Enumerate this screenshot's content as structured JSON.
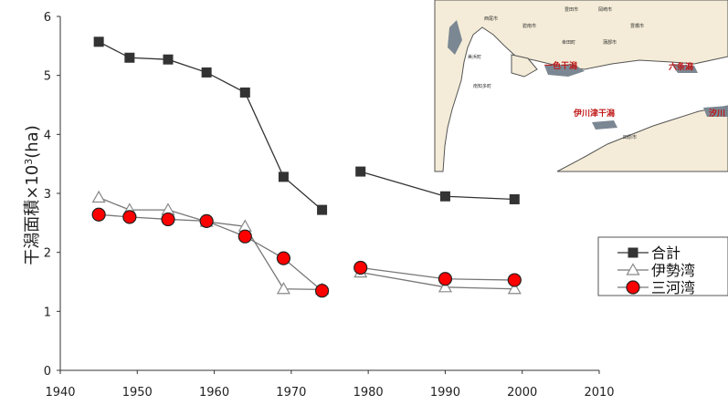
{
  "chart_data": {
    "type": "line",
    "title": "",
    "xlabel": "",
    "ylabel": "干潟面積×10",
    "ylabel_sup": "3",
    "ylabel_unit": "(ha)",
    "xlim": [
      1940,
      2010
    ],
    "ylim": [
      0,
      6
    ],
    "x_ticks": [
      1940,
      1950,
      1960,
      1970,
      1980,
      1990,
      2000,
      2010
    ],
    "y_ticks": [
      0,
      1,
      2,
      3,
      4,
      5,
      6
    ],
    "legend_position": "right",
    "series": [
      {
        "name": "合計",
        "marker": "square",
        "color": "#333333",
        "segments": [
          [
            [
              1945,
              5.57
            ],
            [
              1949,
              5.3
            ],
            [
              1954,
              5.27
            ],
            [
              1959,
              5.05
            ],
            [
              1964,
              4.71
            ],
            [
              1969,
              3.28
            ],
            [
              1974,
              2.72
            ]
          ],
          [
            [
              1979,
              3.37
            ],
            [
              1990,
              2.95
            ],
            [
              1999,
              2.9
            ]
          ]
        ]
      },
      {
        "name": "伊勢湾",
        "marker": "triangle",
        "color": "#888888",
        "segments": [
          [
            [
              1945,
              2.93
            ],
            [
              1949,
              2.72
            ],
            [
              1954,
              2.72
            ],
            [
              1959,
              2.52
            ],
            [
              1964,
              2.44
            ],
            [
              1969,
              1.38
            ],
            [
              1974,
              1.37
            ]
          ],
          [
            [
              1979,
              1.66
            ],
            [
              1990,
              1.41
            ],
            [
              1999,
              1.38
            ]
          ]
        ]
      },
      {
        "name": "三河湾",
        "marker": "circle",
        "color": "#ff0000",
        "segments": [
          [
            [
              1945,
              2.64
            ],
            [
              1949,
              2.6
            ],
            [
              1954,
              2.56
            ],
            [
              1959,
              2.53
            ],
            [
              1964,
              2.27
            ],
            [
              1969,
              1.9
            ],
            [
              1974,
              1.35
            ]
          ],
          [
            [
              1979,
              1.74
            ],
            [
              1990,
              1.55
            ],
            [
              1999,
              1.53
            ]
          ]
        ]
      }
    ]
  },
  "map_inset": {
    "labels": [
      "一色干潟",
      "六条潟",
      "伊川津干潟",
      "汐川"
    ],
    "small_labels": [
      "西尾市",
      "碧南市",
      "豊田市",
      "岡崎市",
      "豊橋市",
      "田原市",
      "蒲郡市",
      "幸田町",
      "美浜町",
      "南知多町"
    ]
  }
}
